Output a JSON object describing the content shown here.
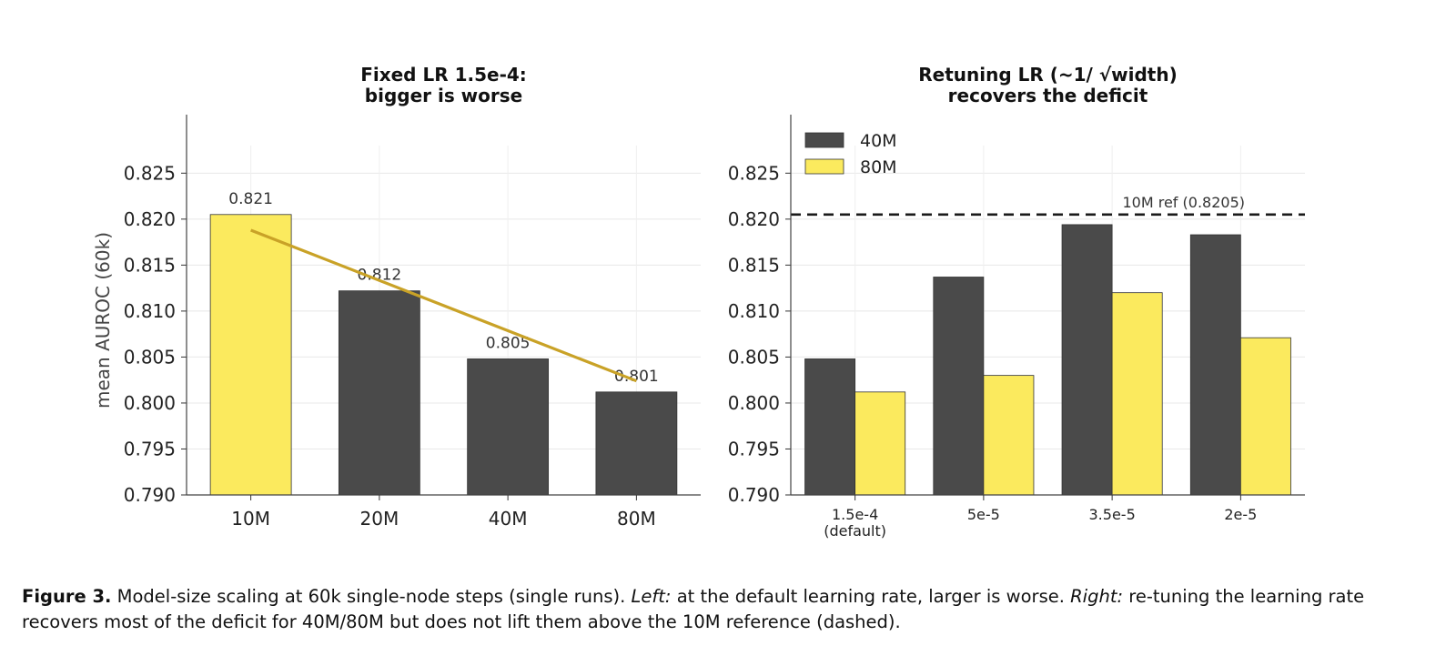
{
  "chart_data": [
    {
      "type": "bar",
      "title": [
        "Fixed LR 1.5e-4:",
        "bigger is worse"
      ],
      "ylabel": "mean AUROC (60k)",
      "ylim": [
        0.79,
        0.828
      ],
      "yticks": [
        "0.790",
        "0.795",
        "0.800",
        "0.805",
        "0.810",
        "0.815",
        "0.820",
        "0.825"
      ],
      "categories": [
        "10M",
        "20M",
        "40M",
        "80M"
      ],
      "values": [
        0.8205,
        0.8122,
        0.8048,
        0.8012
      ],
      "data_labels": [
        "0.821",
        "0.812",
        "0.805",
        "0.801"
      ],
      "bar_colors": [
        "#fbea5e",
        "#4a4a4a",
        "#4a4a4a",
        "#4a4a4a"
      ],
      "trend_line": {
        "from": 0.8188,
        "to": 0.8024,
        "color": "#c9a227"
      },
      "grid": true
    },
    {
      "type": "bar",
      "title": [
        "Retuning LR (~1/ √width)",
        "recovers the deficit"
      ],
      "ylim": [
        0.79,
        0.828
      ],
      "yticks": [
        "0.790",
        "0.795",
        "0.800",
        "0.805",
        "0.810",
        "0.815",
        "0.820",
        "0.825"
      ],
      "categories": [
        [
          "1.5e-4",
          "(default)"
        ],
        [
          "5e-5"
        ],
        [
          "3.5e-5"
        ],
        [
          "2e-5"
        ]
      ],
      "series": [
        {
          "name": "40M",
          "color": "#4a4a4a",
          "values": [
            0.8048,
            0.8137,
            0.8194,
            0.8183
          ]
        },
        {
          "name": "80M",
          "color": "#fbea5e",
          "values": [
            0.8012,
            0.803,
            0.812,
            0.8071
          ]
        }
      ],
      "reference_line": {
        "value": 0.8205,
        "label": "10M ref (0.8205)",
        "style": "dashed"
      },
      "legend": "top-left",
      "grid": true
    }
  ],
  "caption": {
    "label": "Figure 3.",
    "part1": " Model-size scaling at 60k single-node steps (single runs). ",
    "left_tag": "Left:",
    "part2": " at the default learning rate, larger is worse. ",
    "right_tag": "Right:",
    "part3": " re-tuning the learning rate recovers most of the deficit for 40M/80M but does not lift them above the 10M reference (dashed)."
  }
}
